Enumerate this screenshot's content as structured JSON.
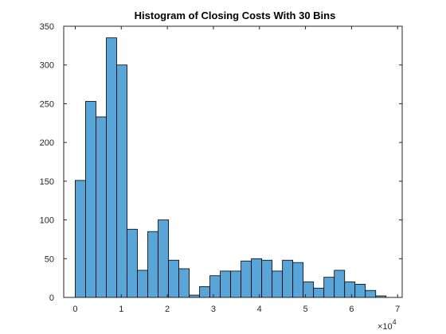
{
  "chart_data": {
    "type": "bar",
    "title": "Histogram of Closing Costs With 30 Bins",
    "xlabel": "",
    "ylabel": "",
    "x_exponent_label": "×10",
    "x_exponent_power": "4",
    "bin_start": 0,
    "bin_width": 0.225,
    "xlim": [
      -0.25,
      7.1
    ],
    "ylim": [
      0,
      350
    ],
    "x_ticks": [
      0,
      1,
      2,
      3,
      4,
      5,
      6,
      7
    ],
    "y_ticks": [
      0,
      50,
      100,
      150,
      200,
      250,
      300,
      350
    ],
    "values": [
      151,
      253,
      233,
      335,
      300,
      88,
      35,
      85,
      100,
      48,
      37,
      3,
      14,
      28,
      34,
      34,
      47,
      50,
      48,
      34,
      48,
      45,
      20,
      12,
      26,
      35,
      20,
      17,
      9,
      2
    ],
    "bar_color": "#5aa5d8",
    "edge_color": "#000000",
    "grid": false
  }
}
